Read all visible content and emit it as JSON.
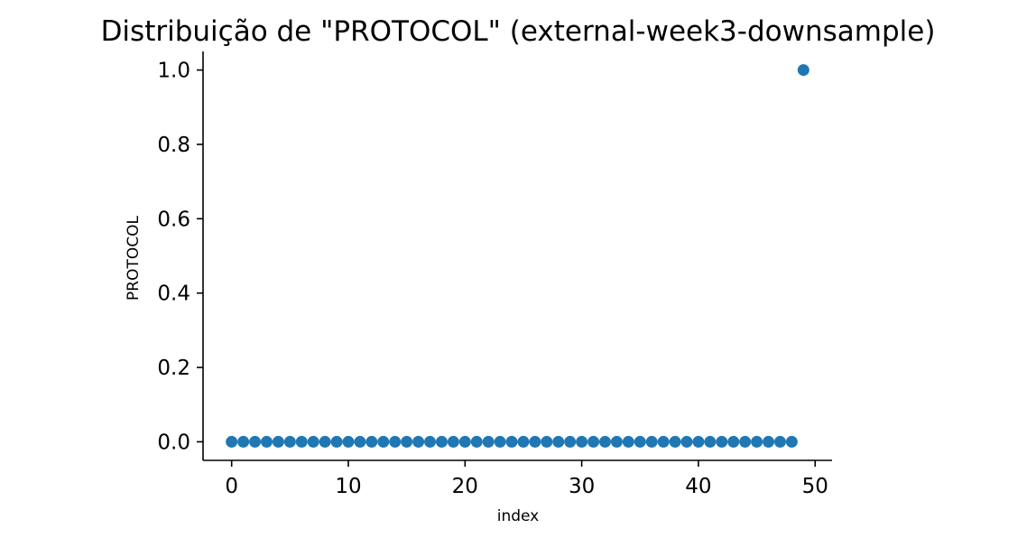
{
  "chart_data": {
    "type": "scatter",
    "title": "Distribuição de \"PROTOCOL\" (external-week3-downsample)",
    "xlabel": "index",
    "ylabel": "PROTOCOL",
    "xlim": [
      -2.45,
      51.45
    ],
    "ylim": [
      -0.05,
      1.05
    ],
    "xticks": [
      0,
      10,
      20,
      30,
      40,
      50
    ],
    "xtick_labels": [
      "0",
      "10",
      "20",
      "30",
      "40",
      "50"
    ],
    "yticks": [
      0.0,
      0.2,
      0.4,
      0.6,
      0.8,
      1.0
    ],
    "ytick_labels": [
      "0.0",
      "0.2",
      "0.4",
      "0.6",
      "0.8",
      "1.0"
    ],
    "grid": false,
    "series": [
      {
        "color": "#1f77b4",
        "x": [
          0,
          1,
          2,
          3,
          4,
          5,
          6,
          7,
          8,
          9,
          10,
          11,
          12,
          13,
          14,
          15,
          16,
          17,
          18,
          19,
          20,
          21,
          22,
          23,
          24,
          25,
          26,
          27,
          28,
          29,
          30,
          31,
          32,
          33,
          34,
          35,
          36,
          37,
          38,
          39,
          40,
          41,
          42,
          43,
          44,
          45,
          46,
          47,
          48,
          49
        ],
        "y": [
          0,
          0,
          0,
          0,
          0,
          0,
          0,
          0,
          0,
          0,
          0,
          0,
          0,
          0,
          0,
          0,
          0,
          0,
          0,
          0,
          0,
          0,
          0,
          0,
          0,
          0,
          0,
          0,
          0,
          0,
          0,
          0,
          0,
          0,
          0,
          0,
          0,
          0,
          0,
          0,
          0,
          0,
          0,
          0,
          0,
          0,
          0,
          0,
          0,
          1
        ]
      }
    ]
  }
}
